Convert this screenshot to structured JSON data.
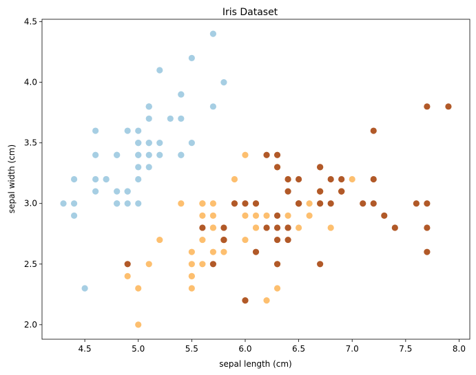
{
  "chart_data": {
    "type": "scatter",
    "title": "Iris Dataset",
    "xlabel": "sepal length (cm)",
    "ylabel": "sepal width (cm)",
    "xlim": [
      4.1,
      8.1
    ],
    "ylim": [
      1.88,
      4.52
    ],
    "xticks": [
      4.5,
      5.0,
      5.5,
      6.0,
      6.5,
      7.0,
      7.5,
      8.0
    ],
    "xtick_labels": [
      "4.5",
      "5.0",
      "5.5",
      "6.0",
      "6.5",
      "7.0",
      "7.5",
      "8.0"
    ],
    "yticks": [
      2.0,
      2.5,
      3.0,
      3.5,
      4.0,
      4.5
    ],
    "ytick_labels": [
      "2.0",
      "2.5",
      "3.0",
      "3.5",
      "4.0",
      "4.5"
    ],
    "grid": false,
    "legend": "none",
    "series": [
      {
        "color": "#a6cee3",
        "points": [
          [
            5.1,
            3.5
          ],
          [
            4.9,
            3.0
          ],
          [
            4.7,
            3.2
          ],
          [
            4.6,
            3.1
          ],
          [
            5.0,
            3.6
          ],
          [
            5.4,
            3.9
          ],
          [
            4.6,
            3.4
          ],
          [
            5.0,
            3.4
          ],
          [
            4.4,
            2.9
          ],
          [
            4.9,
            3.1
          ],
          [
            5.4,
            3.7
          ],
          [
            4.8,
            3.4
          ],
          [
            4.8,
            3.0
          ],
          [
            4.3,
            3.0
          ],
          [
            5.8,
            4.0
          ],
          [
            5.7,
            4.4
          ],
          [
            5.4,
            3.9
          ],
          [
            5.1,
            3.5
          ],
          [
            5.7,
            3.8
          ],
          [
            5.1,
            3.8
          ],
          [
            5.4,
            3.4
          ],
          [
            5.1,
            3.7
          ],
          [
            4.6,
            3.6
          ],
          [
            5.1,
            3.3
          ],
          [
            4.8,
            3.4
          ],
          [
            5.0,
            3.0
          ],
          [
            5.0,
            3.4
          ],
          [
            5.2,
            3.5
          ],
          [
            5.2,
            3.4
          ],
          [
            4.7,
            3.2
          ],
          [
            4.8,
            3.1
          ],
          [
            5.4,
            3.4
          ],
          [
            5.2,
            4.1
          ],
          [
            5.5,
            4.2
          ],
          [
            4.9,
            3.1
          ],
          [
            5.0,
            3.2
          ],
          [
            5.5,
            3.5
          ],
          [
            4.9,
            3.6
          ],
          [
            4.4,
            3.0
          ],
          [
            5.1,
            3.4
          ],
          [
            5.0,
            3.5
          ],
          [
            4.5,
            2.3
          ],
          [
            4.4,
            3.2
          ],
          [
            5.0,
            3.5
          ],
          [
            5.1,
            3.8
          ],
          [
            4.8,
            3.0
          ],
          [
            5.1,
            3.8
          ],
          [
            4.6,
            3.2
          ],
          [
            5.3,
            3.7
          ],
          [
            5.0,
            3.3
          ]
        ]
      },
      {
        "color": "#fdbf6f",
        "points": [
          [
            7.0,
            3.2
          ],
          [
            6.4,
            3.2
          ],
          [
            6.9,
            3.1
          ],
          [
            5.5,
            2.3
          ],
          [
            6.5,
            2.8
          ],
          [
            5.7,
            2.8
          ],
          [
            6.3,
            3.3
          ],
          [
            4.9,
            2.4
          ],
          [
            6.6,
            2.9
          ],
          [
            5.2,
            2.7
          ],
          [
            5.0,
            2.0
          ],
          [
            5.9,
            3.0
          ],
          [
            6.0,
            2.2
          ],
          [
            6.1,
            2.9
          ],
          [
            5.6,
            2.9
          ],
          [
            6.7,
            3.1
          ],
          [
            5.6,
            3.0
          ],
          [
            5.8,
            2.7
          ],
          [
            6.2,
            2.2
          ],
          [
            5.6,
            2.5
          ],
          [
            5.9,
            3.2
          ],
          [
            6.1,
            2.8
          ],
          [
            6.3,
            2.5
          ],
          [
            6.1,
            2.8
          ],
          [
            6.4,
            2.9
          ],
          [
            6.6,
            3.0
          ],
          [
            6.8,
            2.8
          ],
          [
            6.7,
            3.0
          ],
          [
            6.0,
            2.9
          ],
          [
            5.7,
            2.6
          ],
          [
            5.5,
            2.4
          ],
          [
            5.5,
            2.4
          ],
          [
            5.8,
            2.7
          ],
          [
            6.0,
            2.7
          ],
          [
            5.4,
            3.0
          ],
          [
            6.0,
            3.4
          ],
          [
            6.7,
            3.1
          ],
          [
            6.3,
            2.3
          ],
          [
            5.6,
            3.0
          ],
          [
            5.5,
            2.5
          ],
          [
            5.5,
            2.6
          ],
          [
            6.1,
            3.0
          ],
          [
            5.8,
            2.6
          ],
          [
            5.0,
            2.3
          ],
          [
            5.6,
            2.7
          ],
          [
            5.7,
            3.0
          ],
          [
            5.7,
            2.9
          ],
          [
            6.2,
            2.9
          ],
          [
            5.1,
            2.5
          ],
          [
            5.7,
            2.8
          ]
        ]
      },
      {
        "color": "#b15928",
        "points": [
          [
            6.3,
            3.3
          ],
          [
            5.8,
            2.7
          ],
          [
            7.1,
            3.0
          ],
          [
            6.3,
            2.9
          ],
          [
            6.5,
            3.0
          ],
          [
            7.6,
            3.0
          ],
          [
            4.9,
            2.5
          ],
          [
            7.3,
            2.9
          ],
          [
            6.7,
            2.5
          ],
          [
            7.2,
            3.6
          ],
          [
            6.5,
            3.2
          ],
          [
            6.4,
            2.7
          ],
          [
            6.8,
            3.0
          ],
          [
            5.7,
            2.5
          ],
          [
            5.8,
            2.8
          ],
          [
            6.4,
            3.2
          ],
          [
            6.5,
            3.0
          ],
          [
            7.7,
            3.8
          ],
          [
            7.7,
            2.6
          ],
          [
            6.0,
            2.2
          ],
          [
            6.9,
            3.2
          ],
          [
            5.6,
            2.8
          ],
          [
            7.7,
            2.8
          ],
          [
            6.3,
            2.7
          ],
          [
            6.7,
            3.3
          ],
          [
            7.2,
            3.2
          ],
          [
            6.2,
            2.8
          ],
          [
            6.1,
            3.0
          ],
          [
            6.4,
            2.8
          ],
          [
            7.2,
            3.0
          ],
          [
            7.4,
            2.8
          ],
          [
            7.9,
            3.8
          ],
          [
            6.4,
            2.8
          ],
          [
            6.3,
            2.8
          ],
          [
            6.1,
            2.6
          ],
          [
            7.7,
            3.0
          ],
          [
            6.3,
            3.4
          ],
          [
            6.4,
            3.1
          ],
          [
            6.0,
            3.0
          ],
          [
            6.9,
            3.1
          ],
          [
            6.7,
            3.1
          ],
          [
            6.9,
            3.1
          ],
          [
            5.8,
            2.7
          ],
          [
            6.8,
            3.2
          ],
          [
            6.7,
            3.3
          ],
          [
            6.7,
            3.0
          ],
          [
            6.3,
            2.5
          ],
          [
            6.5,
            3.0
          ],
          [
            6.2,
            3.4
          ],
          [
            5.9,
            3.0
          ]
        ]
      }
    ]
  }
}
